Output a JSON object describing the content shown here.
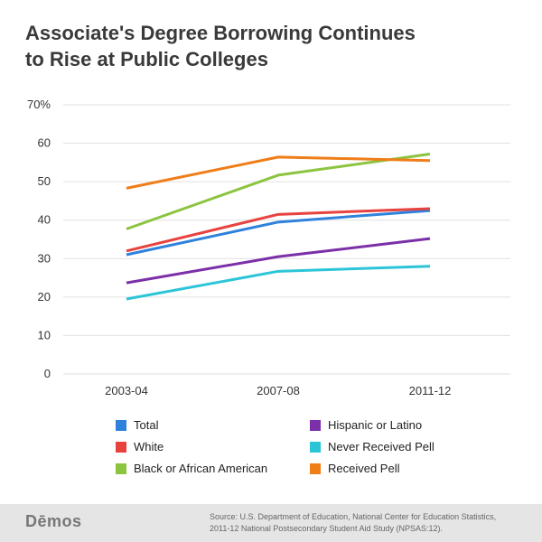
{
  "title_line1": "Associate's Degree Borrowing Continues",
  "title_line2": "to Rise at Public Colleges",
  "chart_data": {
    "type": "line",
    "title": "Associate's Degree Borrowing Continues to Rise at Public Colleges",
    "categories": [
      "2003-04",
      "2007-08",
      "2011-12"
    ],
    "yticks": [
      "0",
      "10",
      "20",
      "30",
      "40",
      "50",
      "60",
      "70%"
    ],
    "ylim": [
      0,
      70
    ],
    "grid": true,
    "legend_position": "bottom",
    "series": [
      {
        "name": "Total",
        "color": "#2f82dc",
        "values": [
          31,
          39.5,
          42.5
        ]
      },
      {
        "name": "White",
        "color": "#e8423f",
        "values": [
          32,
          41.5,
          43
        ]
      },
      {
        "name": "Black or African American",
        "color": "#8bc43f",
        "values": [
          37.7,
          51.7,
          57.2
        ]
      },
      {
        "name": "Hispanic or Latino",
        "color": "#7b2fa8",
        "values": [
          23.7,
          30.5,
          35.2
        ]
      },
      {
        "name": "Never Received Pell",
        "color": "#2cc5d8",
        "values": [
          19.5,
          26.7,
          28
        ]
      },
      {
        "name": "Received Pell",
        "color": "#ef7d18",
        "values": [
          48.3,
          56.4,
          55.5
        ]
      }
    ]
  },
  "legend": [
    {
      "name": "Total",
      "color": "#2f82dc"
    },
    {
      "name": "Hispanic or Latino",
      "color": "#7b2fa8"
    },
    {
      "name": "White",
      "color": "#e8423f"
    },
    {
      "name": "Never Received Pell",
      "color": "#2cc5d8"
    },
    {
      "name": "Black or African American",
      "color": "#8bc43f"
    },
    {
      "name": "Received Pell",
      "color": "#ef7d18"
    }
  ],
  "footer": {
    "logo": "Dēmos",
    "source": "Source: U.S. Department of Education, National Center for Education Statistics, 2011-12 National Postsecondary Student Aid Study (NPSAS:12)."
  }
}
